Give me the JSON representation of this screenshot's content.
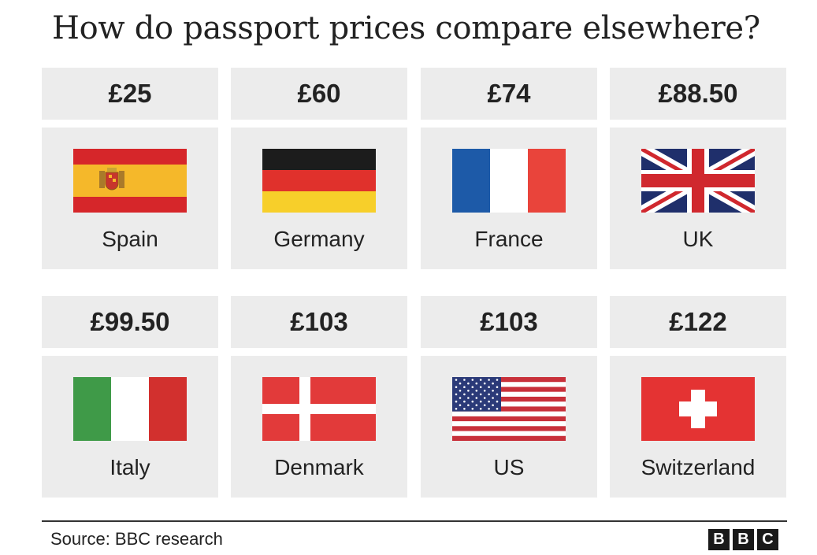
{
  "chart_data": {
    "type": "table",
    "title": "How do passport prices compare elsewhere?",
    "source": "Source: BBC research",
    "logo": [
      "B",
      "B",
      "C"
    ],
    "entries": [
      {
        "country": "Spain",
        "price": "£25",
        "value": 25,
        "flag": "spain-flag-icon"
      },
      {
        "country": "Germany",
        "price": "£60",
        "value": 60,
        "flag": "germany-flag-icon"
      },
      {
        "country": "France",
        "price": "£74",
        "value": 74,
        "flag": "france-flag-icon"
      },
      {
        "country": "UK",
        "price": "£88.50",
        "value": 88.5,
        "flag": "uk-flag-icon"
      },
      {
        "country": "Italy",
        "price": "£99.50",
        "value": 99.5,
        "flag": "italy-flag-icon"
      },
      {
        "country": "Denmark",
        "price": "£103",
        "value": 103,
        "flag": "denmark-flag-icon"
      },
      {
        "country": "US",
        "price": "£103",
        "value": 103,
        "flag": "us-flag-icon"
      },
      {
        "country": "Switzerland",
        "price": "£122",
        "value": 122,
        "flag": "switzerland-flag-icon"
      }
    ]
  }
}
